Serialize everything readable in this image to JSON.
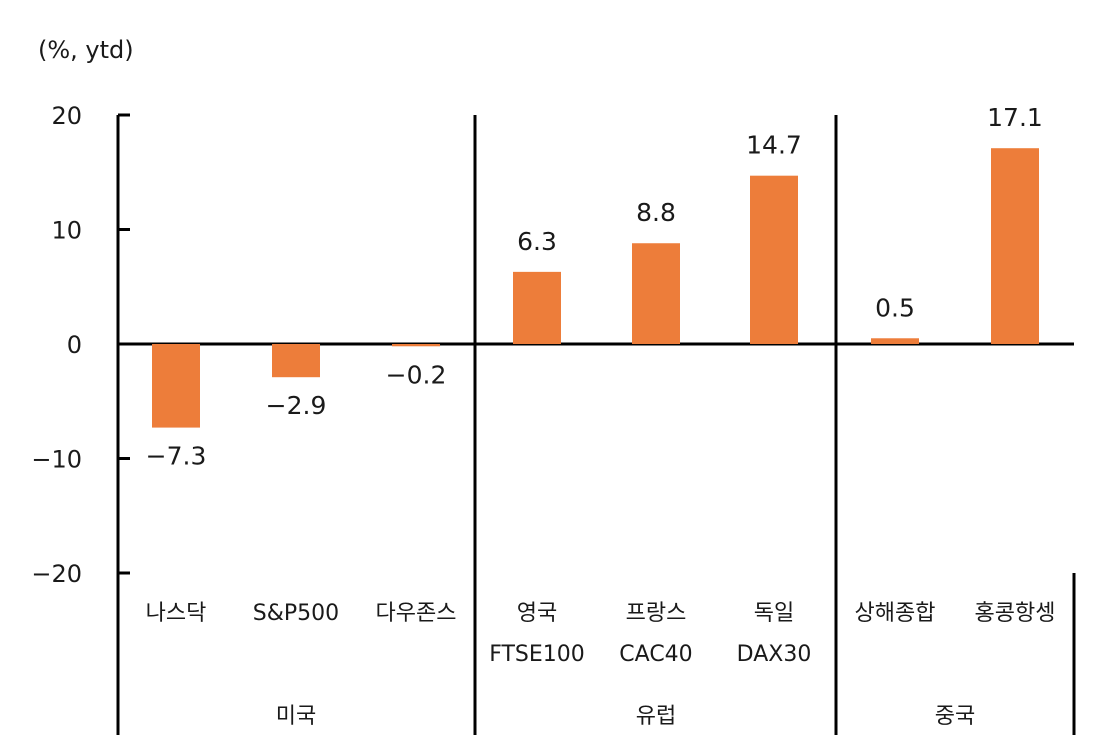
{
  "chart_data": {
    "type": "bar",
    "unit_label": "(%, ytd)",
    "ylim": [
      -20,
      20
    ],
    "yticks": [
      20,
      10,
      0,
      -10,
      -20
    ],
    "ytick_labels": [
      "20",
      "10",
      "0",
      "−10",
      "−20"
    ],
    "bar_color": "#ED7D3A",
    "groups": [
      {
        "name": "미국",
        "items": [
          {
            "label": "나스닥",
            "label2": "",
            "value": -7.3,
            "value_label": "−7.3"
          },
          {
            "label": "S&P500",
            "label2": "",
            "value": -2.9,
            "value_label": "−2.9"
          },
          {
            "label": "다우존스",
            "label2": "",
            "value": -0.2,
            "value_label": "−0.2"
          }
        ]
      },
      {
        "name": "유럽",
        "items": [
          {
            "label": "영국",
            "label2": "FTSE100",
            "value": 6.3,
            "value_label": "6.3"
          },
          {
            "label": "프랑스",
            "label2": "CAC40",
            "value": 8.8,
            "value_label": "8.8"
          },
          {
            "label": "독일",
            "label2": "DAX30",
            "value": 14.7,
            "value_label": "14.7"
          }
        ]
      },
      {
        "name": "중국",
        "items": [
          {
            "label": "상해종합",
            "label2": "",
            "value": 0.5,
            "value_label": "0.5"
          },
          {
            "label": "홍콩항셍",
            "label2": "",
            "value": 17.1,
            "value_label": "17.1"
          }
        ]
      }
    ]
  }
}
